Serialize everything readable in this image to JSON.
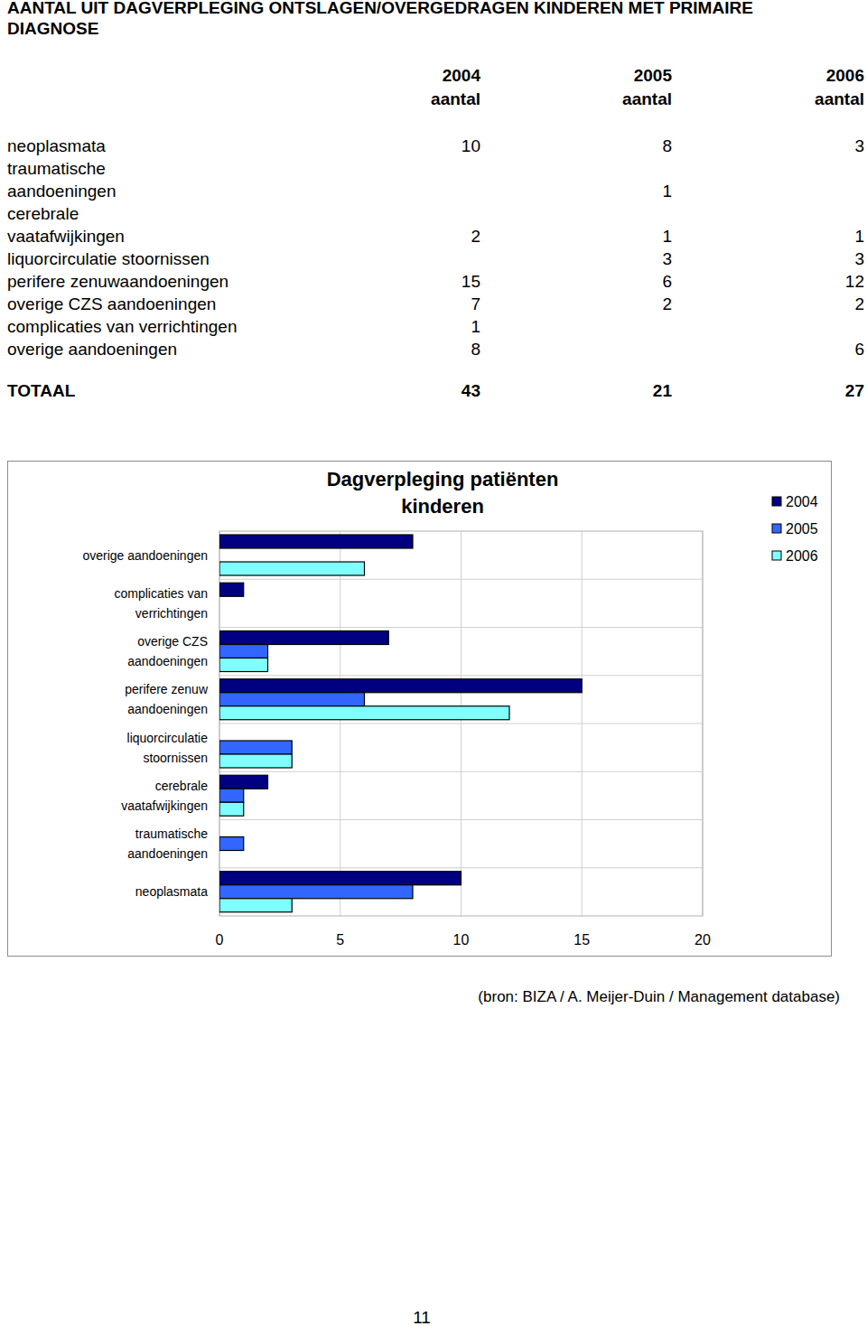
{
  "title": "AANTAL UIT DAGVERPLEGING  ONTSLAGEN/OVERGEDRAGEN KINDEREN MET PRIMAIRE DIAGNOSE",
  "table": {
    "columns": [
      {
        "year": "2004",
        "unit": "aantal"
      },
      {
        "year": "2005",
        "unit": "aantal"
      },
      {
        "year": "2006",
        "unit": "aantal"
      }
    ],
    "rows": [
      {
        "label": [
          "neoplasmata"
        ],
        "values": [
          10,
          8,
          3
        ]
      },
      {
        "label": [
          "traumatische",
          "aandoeningen"
        ],
        "values": [
          null,
          1,
          null
        ]
      },
      {
        "label": [
          "cerebrale",
          "vaatafwijkingen"
        ],
        "values": [
          2,
          1,
          1
        ]
      },
      {
        "label": [
          "liquorcirculatie stoornissen"
        ],
        "values": [
          null,
          3,
          3
        ]
      },
      {
        "label": [
          "perifere zenuwaandoeningen"
        ],
        "values": [
          15,
          6,
          12
        ]
      },
      {
        "label": [
          "overige CZS aandoeningen"
        ],
        "values": [
          7,
          2,
          2
        ]
      },
      {
        "label": [
          "complicaties van verrichtingen"
        ],
        "values": [
          1,
          null,
          null
        ]
      },
      {
        "label": [
          "overige aandoeningen"
        ],
        "values": [
          8,
          null,
          6
        ]
      }
    ],
    "total": {
      "label": "TOTAAL",
      "values": [
        43,
        21,
        27
      ]
    }
  },
  "chart_data": {
    "type": "bar",
    "orientation": "horizontal",
    "title": "Dagverpleging patiënten kinderen",
    "categories": [
      "overige aandoeningen",
      "complicaties van verrichtingen",
      "overige CZS aandoeningen",
      "perifere zenuw aandoeningen",
      "liquorcirculatie stoornissen",
      "cerebrale vaatafwijkingen",
      "traumatische aandoeningen",
      "neoplasmata"
    ],
    "series": [
      {
        "name": "2004",
        "color": "#000080",
        "values": [
          8,
          1,
          7,
          15,
          null,
          2,
          null,
          10
        ]
      },
      {
        "name": "2005",
        "color": "#3366ff",
        "values": [
          null,
          null,
          2,
          6,
          3,
          1,
          1,
          8
        ]
      },
      {
        "name": "2006",
        "color": "#80ffff",
        "values": [
          6,
          null,
          2,
          12,
          3,
          1,
          null,
          3
        ]
      }
    ],
    "xlim": [
      0,
      20
    ],
    "xticks": [
      0,
      5,
      10,
      15,
      20
    ],
    "grid": true,
    "legend": "top-right"
  },
  "source": "(bron: BIZA / A. Meijer-Duin / Management database)",
  "page_number": "11"
}
